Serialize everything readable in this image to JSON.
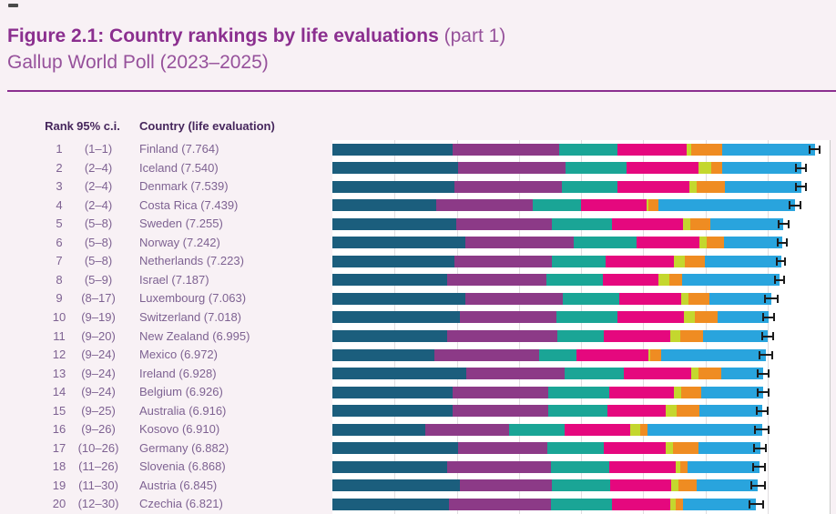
{
  "title": {
    "bold": "Figure 2.1: Country rankings by life evaluations",
    "part": " (part 1)",
    "subtitle": "Gallup World Poll (2023–2025)"
  },
  "table": {
    "headers": {
      "rank": "Rank",
      "ci": "95% c.i.",
      "country": "Country (life evaluation)"
    }
  },
  "colors": {
    "title": "#8b2f8f",
    "header_text": "#46265c",
    "row_text": "#7e6292",
    "divider": "#8b2f8f",
    "page_background": "#f8f1f5",
    "plot_background": "#ffffff",
    "error_bar": "#1c1c1c"
  },
  "chart_data": {
    "type": "bar",
    "orientation": "horizontal",
    "stacked": true,
    "xlim": [
      0,
      8
    ],
    "gridlines": "vertical, every 1 unit, faint gray",
    "legend_position": "none-visible",
    "segments": [
      "dark-teal",
      "purple",
      "teal-green",
      "magenta",
      "yellow-green",
      "orange",
      "light-blue"
    ],
    "segment_colors": [
      "#1b5e7d",
      "#8c3a87",
      "#1aa596",
      "#e5087e",
      "#c4d72e",
      "#ef8c22",
      "#29a4dd"
    ],
    "rows": [
      {
        "rank": "1",
        "ci": "(1–1)",
        "label": "Finland (7.764)",
        "score": 7.764,
        "segments": [
          1.93,
          1.72,
          0.94,
          1.11,
          0.08,
          0.49,
          1.49
        ],
        "err": 0.1
      },
      {
        "rank": "2",
        "ci": "(2–4)",
        "label": "Iceland (7.540)",
        "score": 7.54,
        "segments": [
          2.02,
          1.73,
          0.99,
          1.15,
          0.21,
          0.17,
          1.27
        ],
        "err": 0.09
      },
      {
        "rank": "3",
        "ci": "(2–4)",
        "label": "Denmark (7.539)",
        "score": 7.539,
        "segments": [
          1.97,
          1.72,
          0.9,
          1.15,
          0.12,
          0.45,
          1.23
        ],
        "err": 0.09
      },
      {
        "rank": "4",
        "ci": "(2–4)",
        "label": "Costa Rica (7.439)",
        "score": 7.439,
        "segments": [
          1.67,
          1.55,
          0.78,
          1.06,
          0.03,
          0.16,
          2.19
        ],
        "err": 0.1
      },
      {
        "rank": "5",
        "ci": "(5–8)",
        "label": "Sweden (7.255)",
        "score": 7.255,
        "segments": [
          1.99,
          1.54,
          0.97,
          1.14,
          0.12,
          0.32,
          1.18
        ],
        "err": 0.09
      },
      {
        "rank": "6",
        "ci": "(5–8)",
        "label": "Norway (7.242)",
        "score": 7.242,
        "segments": [
          2.14,
          1.74,
          1.01,
          1.01,
          0.12,
          0.28,
          0.94
        ],
        "err": 0.09
      },
      {
        "rank": "7",
        "ci": "(5–8)",
        "label": "Netherlands (7.223)",
        "score": 7.223,
        "segments": [
          1.97,
          1.56,
          0.86,
          1.11,
          0.17,
          0.33,
          1.22
        ],
        "err": 0.08
      },
      {
        "rank": "8",
        "ci": "(5–9)",
        "label": "Israel (7.187)",
        "score": 7.187,
        "segments": [
          1.85,
          1.6,
          0.9,
          0.9,
          0.17,
          0.21,
          1.56
        ],
        "err": 0.09
      },
      {
        "rank": "9",
        "ci": "(8–17)",
        "label": "Luxembourg (7.063)",
        "score": 7.063,
        "segments": [
          2.14,
          1.57,
          0.91,
          0.99,
          0.12,
          0.33,
          1.0
        ],
        "err": 0.12
      },
      {
        "rank": "10",
        "ci": "(9–19)",
        "label": "Switzerland (7.018)",
        "score": 7.018,
        "segments": [
          2.05,
          1.56,
          0.98,
          1.07,
          0.17,
          0.37,
          0.82
        ],
        "err": 0.1
      },
      {
        "rank": "11",
        "ci": "(9–20)",
        "label": "New Zealand (6.995)",
        "score": 6.995,
        "segments": [
          1.85,
          1.77,
          0.74,
          1.07,
          0.17,
          0.37,
          1.03
        ],
        "err": 0.1
      },
      {
        "rank": "12",
        "ci": "(9–24)",
        "label": "Mexico (6.972)",
        "score": 6.972,
        "segments": [
          1.64,
          1.68,
          0.61,
          1.15,
          0.04,
          0.17,
          1.68
        ],
        "err": 0.12
      },
      {
        "rank": "13",
        "ci": "(9–24)",
        "label": "Ireland (6.928)",
        "score": 6.928,
        "segments": [
          2.16,
          1.58,
          0.95,
          1.08,
          0.12,
          0.37,
          0.67
        ],
        "err": 0.1
      },
      {
        "rank": "14",
        "ci": "(9–24)",
        "label": "Belgium (6.926)",
        "score": 6.926,
        "segments": [
          1.94,
          1.53,
          0.99,
          1.03,
          0.12,
          0.33,
          0.99
        ],
        "err": 0.1
      },
      {
        "rank": "15",
        "ci": "(9–25)",
        "label": "Australia (6.916)",
        "score": 6.916,
        "segments": [
          1.94,
          1.53,
          0.95,
          0.95,
          0.17,
          0.37,
          1.01
        ],
        "err": 0.1
      },
      {
        "rank": "16",
        "ci": "(9–26)",
        "label": "Kosovo (6.910)",
        "score": 6.91,
        "segments": [
          1.5,
          1.34,
          0.89,
          1.06,
          0.16,
          0.12,
          1.84
        ],
        "err": 0.13
      },
      {
        "rank": "17",
        "ci": "(10–26)",
        "label": "Germany (6.882)",
        "score": 6.882,
        "segments": [
          2.02,
          1.44,
          0.91,
          0.99,
          0.12,
          0.41,
          0.99
        ],
        "err": 0.11
      },
      {
        "rank": "18",
        "ci": "(11–26)",
        "label": "Slovenia (6.868)",
        "score": 6.868,
        "segments": [
          1.84,
          1.68,
          0.94,
          1.06,
          0.08,
          0.12,
          1.15
        ],
        "err": 0.11
      },
      {
        "rank": "19",
        "ci": "(11–30)",
        "label": "Austria (6.845)",
        "score": 6.845,
        "segments": [
          2.05,
          1.48,
          0.94,
          0.98,
          0.12,
          0.29,
          0.99
        ],
        "err": 0.12
      },
      {
        "rank": "20",
        "ci": "(12–30)",
        "label": "Czechia (6.821)",
        "score": 6.821,
        "segments": [
          1.88,
          1.64,
          0.98,
          0.94,
          0.08,
          0.12,
          1.18
        ],
        "err": 0.12
      }
    ]
  }
}
